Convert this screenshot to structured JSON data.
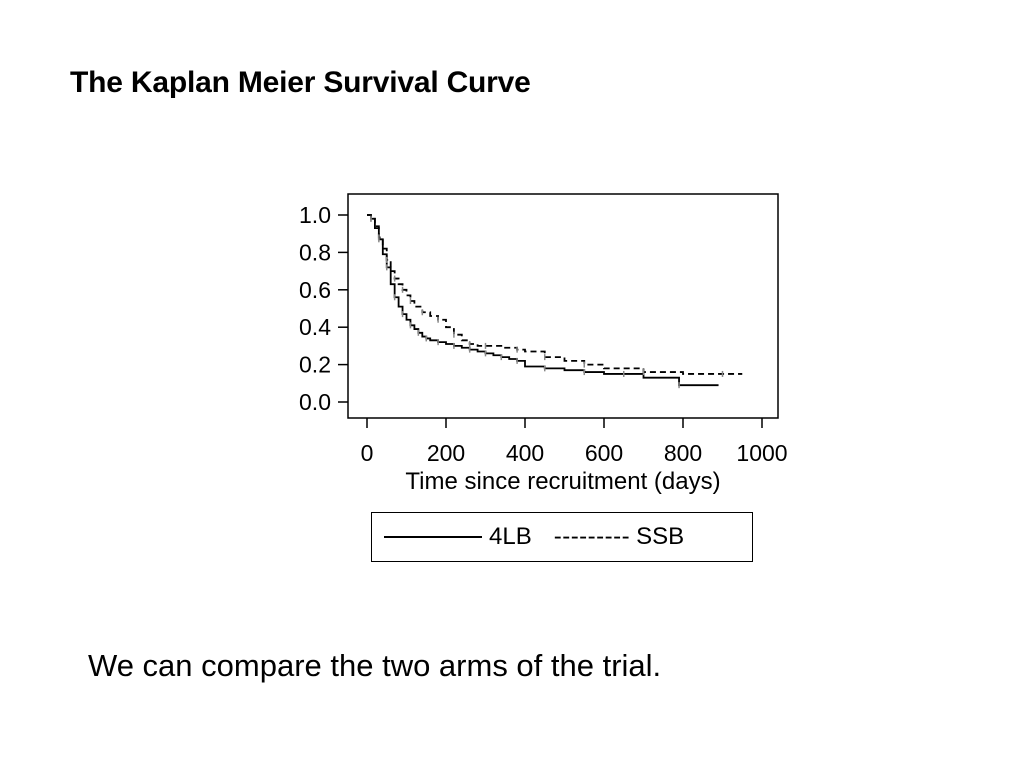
{
  "slide": {
    "title": "The Kaplan Meier Survival Curve",
    "caption": "We can compare the two arms of the trial."
  },
  "legend": {
    "solid_label": "4LB",
    "dash_glyphs": "---------",
    "dashed_label": "SSB"
  },
  "chart_data": {
    "type": "line",
    "title": "",
    "xlabel": "Time since recruitment (days)",
    "ylabel": "",
    "xlim": [
      0,
      1000
    ],
    "ylim": [
      0,
      1
    ],
    "x_ticks": [
      "0",
      "200",
      "400",
      "600",
      "800",
      "1000"
    ],
    "y_ticks": [
      "0.0",
      "0.2",
      "0.4",
      "0.6",
      "0.8",
      "1.0"
    ],
    "grid": false,
    "legend_position": "below",
    "series": [
      {
        "name": "4LB",
        "style": "solid",
        "color": "#000000",
        "x": [
          0,
          10,
          20,
          30,
          40,
          50,
          60,
          70,
          80,
          90,
          100,
          110,
          120,
          130,
          140,
          150,
          160,
          180,
          200,
          220,
          240,
          260,
          280,
          300,
          320,
          340,
          360,
          380,
          400,
          450,
          500,
          550,
          600,
          650,
          700,
          790,
          890
        ],
        "y": [
          1.0,
          0.98,
          0.93,
          0.87,
          0.79,
          0.72,
          0.63,
          0.56,
          0.51,
          0.47,
          0.44,
          0.41,
          0.39,
          0.37,
          0.35,
          0.34,
          0.33,
          0.32,
          0.31,
          0.3,
          0.29,
          0.28,
          0.27,
          0.26,
          0.25,
          0.24,
          0.23,
          0.22,
          0.19,
          0.18,
          0.17,
          0.16,
          0.15,
          0.15,
          0.13,
          0.09,
          0.09
        ]
      },
      {
        "name": "SSB",
        "style": "dashed",
        "color": "#000000",
        "x": [
          0,
          10,
          20,
          30,
          40,
          50,
          60,
          70,
          80,
          90,
          100,
          110,
          120,
          140,
          160,
          180,
          200,
          220,
          240,
          260,
          280,
          300,
          340,
          380,
          400,
          450,
          500,
          550,
          600,
          700,
          800,
          900,
          950
        ],
        "y": [
          1.0,
          0.98,
          0.94,
          0.88,
          0.82,
          0.76,
          0.7,
          0.66,
          0.63,
          0.6,
          0.57,
          0.54,
          0.51,
          0.48,
          0.46,
          0.44,
          0.4,
          0.36,
          0.33,
          0.31,
          0.3,
          0.3,
          0.29,
          0.28,
          0.27,
          0.24,
          0.22,
          0.2,
          0.18,
          0.16,
          0.15,
          0.15,
          0.15
        ]
      }
    ]
  }
}
